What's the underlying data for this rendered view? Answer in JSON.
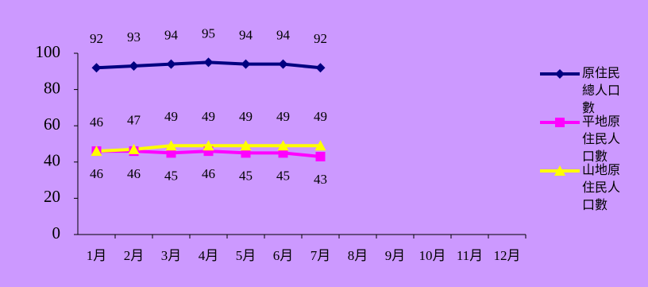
{
  "chart_data": {
    "type": "line",
    "categories": [
      "1月",
      "2月",
      "3月",
      "4月",
      "5月",
      "6月",
      "7月",
      "8月",
      "9月",
      "10月",
      "11月",
      "12月"
    ],
    "series": [
      {
        "name": "原住民總人口數",
        "color": "#000080",
        "marker": "diamond",
        "label_position": "above",
        "values": [
          92,
          93,
          94,
          95,
          94,
          94,
          92,
          null,
          null,
          null,
          null,
          null
        ]
      },
      {
        "name": "平地原住民人口數",
        "color": "#ff00ff",
        "marker": "square",
        "label_position": "below",
        "values": [
          46,
          46,
          45,
          46,
          45,
          45,
          43,
          null,
          null,
          null,
          null,
          null
        ]
      },
      {
        "name": "山地原住民人口數",
        "color": "#ffff00",
        "marker": "triangle",
        "label_position": "above",
        "values": [
          46,
          47,
          49,
          49,
          49,
          49,
          49,
          null,
          null,
          null,
          null,
          null
        ]
      }
    ],
    "ylim": [
      0,
      100
    ],
    "yticks": [
      0,
      20,
      40,
      60,
      80,
      100
    ],
    "grid": false,
    "legend": "right"
  }
}
